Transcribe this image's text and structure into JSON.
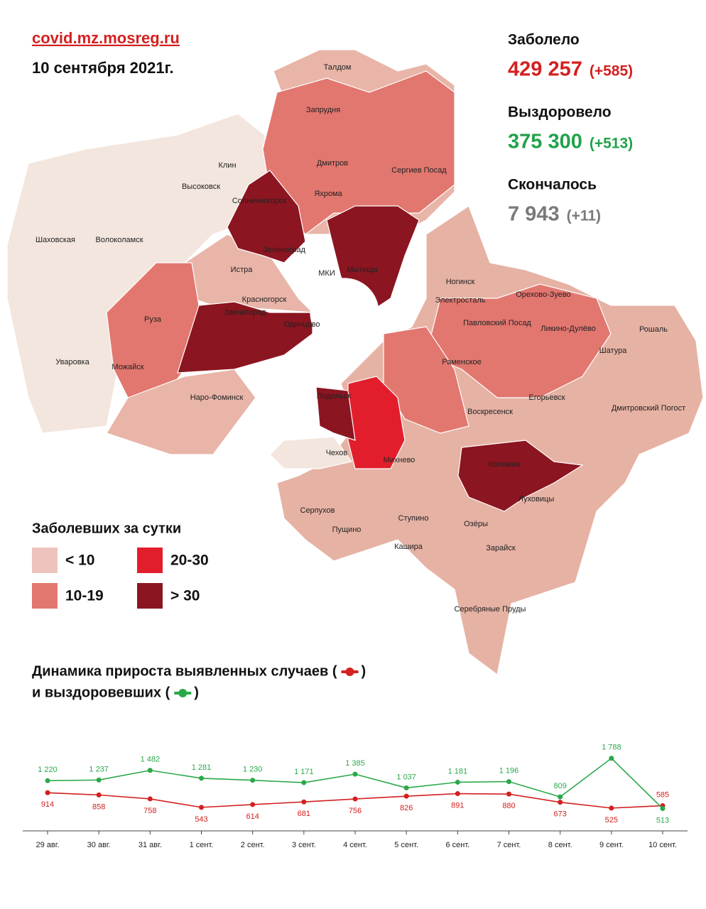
{
  "header": {
    "site": "covid.mz.mosreg.ru",
    "date": "10 сентября 2021г."
  },
  "stats": [
    {
      "label": "Заболело",
      "value": "429 257",
      "delta": "(+585)",
      "color": "#d42020"
    },
    {
      "label": "Выздоровело",
      "value": "375 300",
      "delta": "(+513)",
      "color": "#22a24a"
    },
    {
      "label": "Скончалось",
      "value": "7 943",
      "delta": "(+11)",
      "color": "#7a7a7a"
    }
  ],
  "legend": {
    "title": "Заболевших за сутки",
    "items": [
      {
        "label": "< 10",
        "color": "#efc3bd"
      },
      {
        "label": "20-30",
        "color": "#e31e2c"
      },
      {
        "label": "10-19",
        "color": "#e2776f"
      },
      {
        "label": "> 30",
        "color": "#8b1520"
      }
    ]
  },
  "map": {
    "places": [
      "Талдом",
      "Запрудня",
      "Клин",
      "Высоковск",
      "Дмитров",
      "Сергиев Посад",
      "Яхрома",
      "Солнечногорск",
      "Шаховская",
      "Волоколамск",
      "Зеленоград",
      "Мытищи",
      "МКИ",
      "Истра",
      "Красногорск",
      "Ногинск",
      "Электросталь",
      "Орехово-Зуево",
      "Павловский Посад",
      "Ликино-Дулёво",
      "Рошаль",
      "Звенигород",
      "Одинцово",
      "Руза",
      "Шатура",
      "Раменское",
      "Уваровка",
      "Можайск",
      "Наро-Фоминск",
      "Егорьевск",
      "Дмитровский Погост",
      "Подольск",
      "Воскресенск",
      "Чехов",
      "Михнево",
      "Коломна",
      "Серпухов",
      "Луховицы",
      "Ступино",
      "Пущино",
      "Озёры",
      "Кашира",
      "Зарайск",
      "Серебряные Пруды"
    ]
  },
  "chart_data": {
    "type": "line",
    "title": "Динамика прироста выявленных случаев (",
    "title_close": ")",
    "subtitle": "и выздоровевших (",
    "subtitle_close": ")",
    "categories": [
      "29 авг.",
      "30 авг.",
      "31 авг.",
      "1 сент.",
      "2 сент.",
      "3 сент.",
      "4 сент.",
      "5 сент.",
      "6 сент.",
      "7 сент.",
      "8 сент.",
      "9 сент.",
      "10 сент."
    ],
    "ylim": [
      0,
      2000
    ],
    "series": [
      {
        "color": "#d42020",
        "values": [
          914,
          858,
          758,
          543,
          614,
          681,
          756,
          826,
          891,
          880,
          673,
          525,
          585
        ],
        "value_labels": [
          "914",
          "858",
          "758",
          "543",
          "614",
          "681",
          "756",
          "826",
          "891",
          "880",
          "673",
          "525",
          "585"
        ]
      },
      {
        "color": "#2aa84a",
        "values": [
          1220,
          1237,
          1482,
          1281,
          1230,
          1171,
          1385,
          1037,
          1181,
          1196,
          809,
          1788,
          513
        ],
        "value_labels": [
          "1 220",
          "1 237",
          "1 482",
          "1 281",
          "1 230",
          "1 171",
          "1 385",
          "1 037",
          "1 181",
          "1 196",
          "809",
          "1 788",
          "513"
        ]
      }
    ]
  }
}
